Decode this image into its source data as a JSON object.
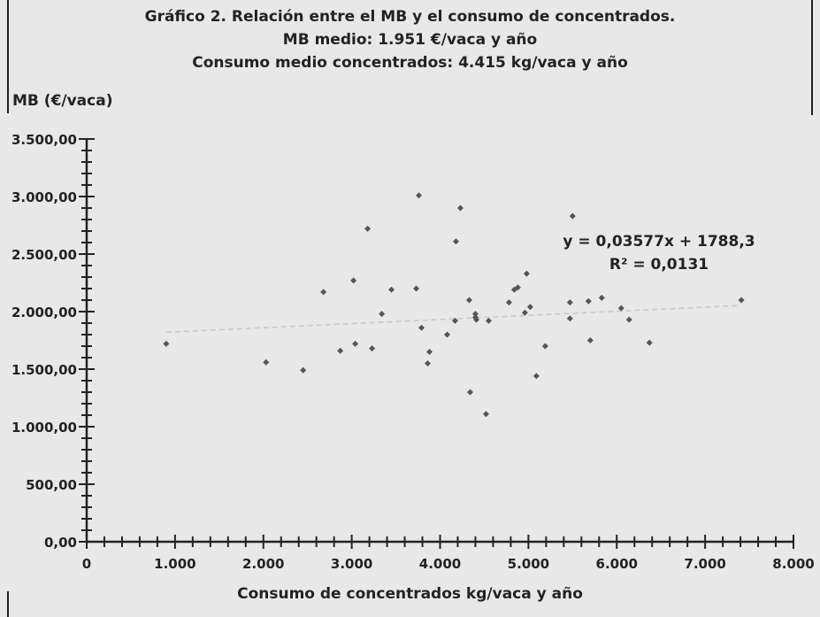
{
  "title": {
    "line1": "Gráfico 2. Relación entre el MB y el consumo de concentrados.",
    "line2": "MB medio: 1.951 €/vaca y año",
    "line3": "Consumo medio concentrados: 4.415 kg/vaca y año"
  },
  "annotation": {
    "equation": "y = 0,03577x + 1788,3",
    "r2": "R² = 0,0131"
  },
  "colors": {
    "background": "#e8e8e8",
    "axis": "#222222",
    "point": "#555555",
    "trendline": "#c8c8c8"
  },
  "chart_data": {
    "type": "scatter",
    "title": "Gráfico 2. Relación entre el MB y el consumo de concentrados.",
    "xlabel": "Consumo de concentrados kg/vaca y año",
    "ylabel": "MB (€/vaca)",
    "xlim": [
      0,
      8000
    ],
    "ylim": [
      0,
      3500
    ],
    "x_ticks": [
      0,
      1000,
      2000,
      3000,
      4000,
      5000,
      6000,
      7000,
      8000
    ],
    "x_tick_labels": [
      "0",
      "1.000",
      "2.000",
      "3.000",
      "4.000",
      "5.000",
      "6.000",
      "7.000",
      "8.000"
    ],
    "y_ticks": [
      0,
      500,
      1000,
      1500,
      2000,
      2500,
      3000,
      3500
    ],
    "y_tick_labels": [
      "0,00",
      "500,00",
      "1.000,00",
      "1.500,00",
      "2.000,00",
      "2.500,00",
      "3.000,00",
      "3.500,00"
    ],
    "x_minor_step": 200,
    "y_minor_step": 100,
    "grid": false,
    "trendline": {
      "slope": 0.03577,
      "intercept": 1788.3,
      "x_range": [
        900,
        7400
      ]
    },
    "points": [
      {
        "x": 900,
        "y": 1720
      },
      {
        "x": 2030,
        "y": 1560
      },
      {
        "x": 2450,
        "y": 1490
      },
      {
        "x": 2680,
        "y": 2170
      },
      {
        "x": 2870,
        "y": 1660
      },
      {
        "x": 3020,
        "y": 2270
      },
      {
        "x": 3040,
        "y": 1720
      },
      {
        "x": 3180,
        "y": 2720
      },
      {
        "x": 3230,
        "y": 1680
      },
      {
        "x": 3340,
        "y": 1980
      },
      {
        "x": 3450,
        "y": 2190
      },
      {
        "x": 3730,
        "y": 2200
      },
      {
        "x": 3760,
        "y": 3010
      },
      {
        "x": 3790,
        "y": 1860
      },
      {
        "x": 3860,
        "y": 1550
      },
      {
        "x": 3880,
        "y": 1650
      },
      {
        "x": 4080,
        "y": 1800
      },
      {
        "x": 4170,
        "y": 1920
      },
      {
        "x": 4180,
        "y": 2610
      },
      {
        "x": 4230,
        "y": 2900
      },
      {
        "x": 4330,
        "y": 2100
      },
      {
        "x": 4340,
        "y": 1300
      },
      {
        "x": 4400,
        "y": 1980
      },
      {
        "x": 4400,
        "y": 1950
      },
      {
        "x": 4410,
        "y": 1930
      },
      {
        "x": 4520,
        "y": 1110
      },
      {
        "x": 4550,
        "y": 1920
      },
      {
        "x": 4780,
        "y": 2080
      },
      {
        "x": 4840,
        "y": 2190
      },
      {
        "x": 4880,
        "y": 2210
      },
      {
        "x": 4960,
        "y": 1990
      },
      {
        "x": 4980,
        "y": 2330
      },
      {
        "x": 5020,
        "y": 2040
      },
      {
        "x": 5090,
        "y": 1440
      },
      {
        "x": 5190,
        "y": 1700
      },
      {
        "x": 5470,
        "y": 1940
      },
      {
        "x": 5470,
        "y": 2080
      },
      {
        "x": 5500,
        "y": 2830
      },
      {
        "x": 5680,
        "y": 2090
      },
      {
        "x": 5700,
        "y": 1750
      },
      {
        "x": 5830,
        "y": 2120
      },
      {
        "x": 6050,
        "y": 2030
      },
      {
        "x": 6140,
        "y": 1930
      },
      {
        "x": 6370,
        "y": 1730
      },
      {
        "x": 7410,
        "y": 2100
      }
    ]
  }
}
